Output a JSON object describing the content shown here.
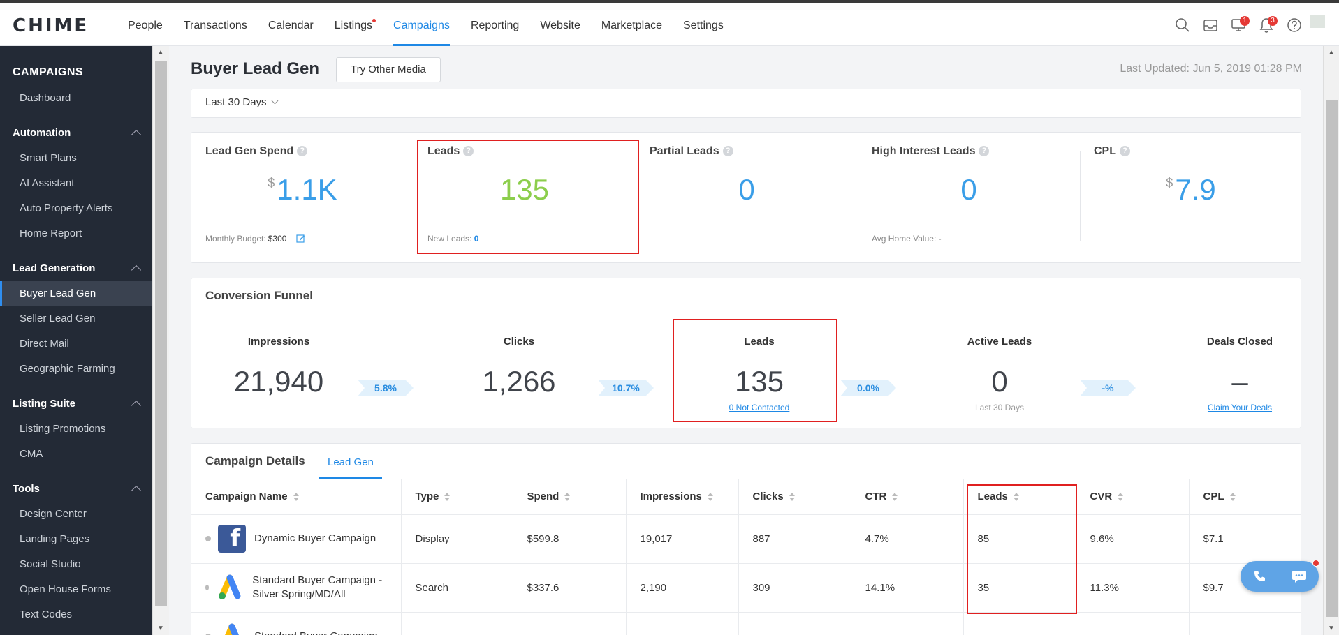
{
  "app": {
    "logo": "CHIME"
  },
  "nav": {
    "items": [
      "People",
      "Transactions",
      "Calendar",
      "Listings",
      "Campaigns",
      "Reporting",
      "Website",
      "Marketplace",
      "Settings"
    ],
    "active": "Campaigns"
  },
  "top_icons": {
    "search": "search-icon",
    "inbox": "inbox-icon",
    "monitor_badge": "1",
    "bell_badge": "3",
    "help": "help-icon"
  },
  "sidebar": {
    "title": "CAMPAIGNS",
    "dashboard": "Dashboard",
    "sections": [
      {
        "label": "Automation",
        "items": [
          "Smart Plans",
          "AI Assistant",
          "Auto Property Alerts",
          "Home Report"
        ]
      },
      {
        "label": "Lead Generation",
        "items": [
          "Buyer Lead Gen",
          "Seller Lead Gen",
          "Direct Mail",
          "Geographic Farming"
        ]
      },
      {
        "label": "Listing Suite",
        "items": [
          "Listing Promotions",
          "CMA"
        ]
      },
      {
        "label": "Tools",
        "items": [
          "Design Center",
          "Landing Pages",
          "Social Studio",
          "Open House Forms",
          "Text Codes"
        ]
      }
    ],
    "active_item": "Buyer Lead Gen"
  },
  "page": {
    "title": "Buyer Lead Gen",
    "try_media_button": "Try Other Media",
    "last_updated": "Last Updated: Jun 5, 2019 01:28 PM",
    "date_range": "Last 30 Days"
  },
  "kpis": {
    "spend": {
      "label": "Lead Gen Spend",
      "currency": "$",
      "value": "1.1K",
      "foot_label": "Monthly Budget:",
      "foot_value": "$300"
    },
    "leads": {
      "label": "Leads",
      "value": "135",
      "foot_label": "New Leads:",
      "foot_value": "0"
    },
    "partial": {
      "label": "Partial Leads",
      "value": "0"
    },
    "high_interest": {
      "label": "High Interest Leads",
      "value": "0",
      "foot_label": "Avg Home Value:",
      "foot_value": "-"
    },
    "cpl": {
      "label": "CPL",
      "currency": "$",
      "value": "7.9"
    }
  },
  "funnel": {
    "title": "Conversion Funnel",
    "stages": [
      {
        "label": "Impressions",
        "value": "21,940",
        "sub": ""
      },
      {
        "label": "Clicks",
        "value": "1,266",
        "sub": ""
      },
      {
        "label": "Leads",
        "value": "135",
        "sub": "0 Not Contacted"
      },
      {
        "label": "Active Leads",
        "value": "0",
        "sub": "Last 30 Days"
      },
      {
        "label": "Deals Closed",
        "value": "–",
        "sub": "Claim Your Deals"
      }
    ],
    "rates": [
      "5.8%",
      "10.7%",
      "0.0%",
      "-%"
    ]
  },
  "details": {
    "title": "Campaign Details",
    "tab": "Lead Gen",
    "columns": [
      "Campaign Name",
      "Type",
      "Spend",
      "Impressions",
      "Clicks",
      "CTR",
      "Leads",
      "CVR",
      "CPL"
    ],
    "rows": [
      {
        "logo": "facebook-logo",
        "name": "Dynamic Buyer Campaign",
        "type": "Display",
        "spend": "$599.8",
        "impressions": "19,017",
        "clicks": "887",
        "ctr": "4.7%",
        "leads": "85",
        "cvr": "9.6%",
        "cpl": "$7.1"
      },
      {
        "logo": "google-ads-logo",
        "name": "Standard Buyer Campaign - Silver Spring/MD/All",
        "type": "Search",
        "spend": "$337.6",
        "impressions": "2,190",
        "clicks": "309",
        "ctr": "14.1%",
        "leads": "35",
        "cvr": "11.3%",
        "cpl": "$9.7"
      },
      {
        "logo": "google-ads-logo",
        "name": "Standard Buyer Campaign -",
        "type": "",
        "spend": "",
        "impressions": "",
        "clicks": "",
        "ctr": "",
        "leads": "",
        "cvr": "",
        "cpl": ""
      }
    ]
  },
  "colors": {
    "accent": "#1e88e5",
    "kpi_blue": "#3a9ee8",
    "kpi_green": "#8cce4c",
    "sidebar_bg": "#232a36",
    "highlight_red": "#e02020"
  }
}
